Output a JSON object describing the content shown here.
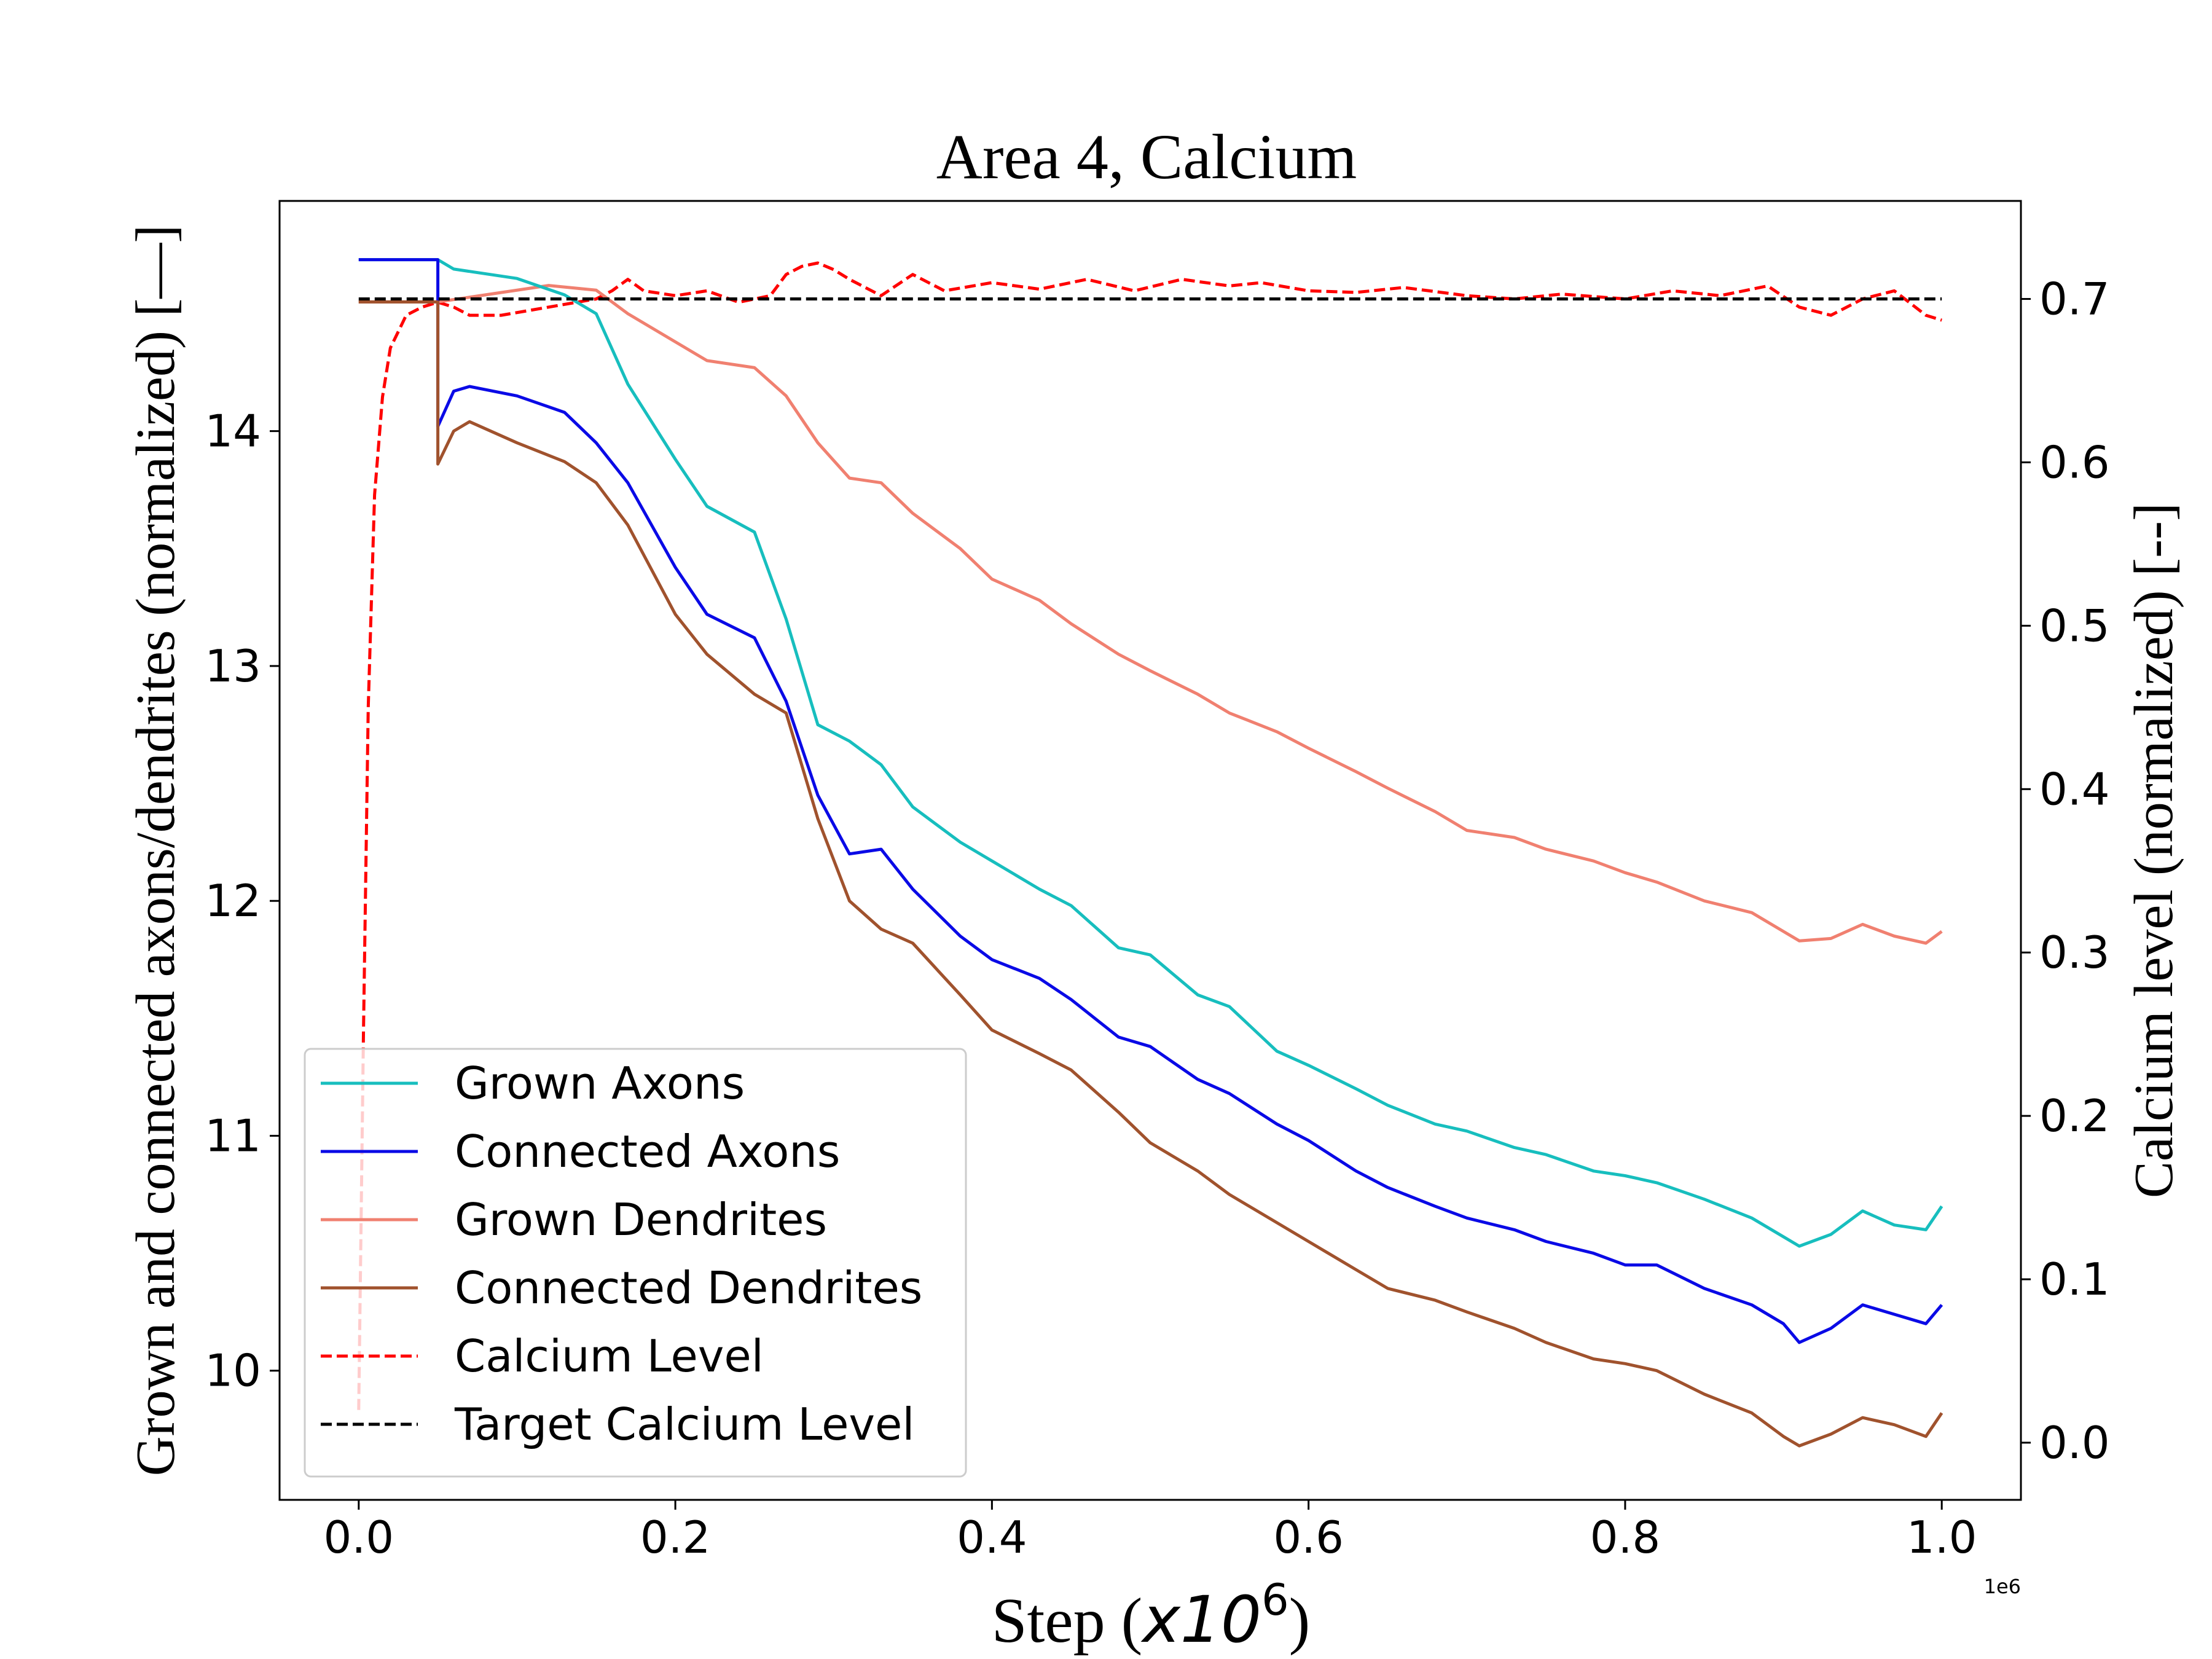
{
  "chart_data": {
    "type": "line",
    "title": "Area 4, Calcium",
    "xlabel": "Step (",
    "xlabel_math": "x10",
    "xlabel_sup": "6",
    "xlabel_close": ")",
    "x_offset_text": "1e6",
    "ylabel_left": "Grown and connected axons/dendrites (normalized) [—]",
    "ylabel_right": "Calcium level (normalized) [--]",
    "xlim": [
      -0.05,
      1.05
    ],
    "ylim_left": [
      9.45,
      14.98
    ],
    "ylim_right": [
      -0.035,
      0.76
    ],
    "x_ticks": [
      0.0,
      0.2,
      0.4,
      0.6,
      0.8,
      1.0
    ],
    "x_tick_labels": [
      "0.0",
      "0.2",
      "0.4",
      "0.6",
      "0.8",
      "1.0"
    ],
    "y_left_ticks": [
      10,
      11,
      12,
      13,
      14
    ],
    "y_left_tick_labels": [
      "10",
      "11",
      "12",
      "13",
      "14"
    ],
    "y_right_ticks": [
      0.0,
      0.1,
      0.2,
      0.3,
      0.4,
      0.5,
      0.6,
      0.7
    ],
    "y_right_tick_labels": [
      "0.0",
      "0.1",
      "0.2",
      "0.3",
      "0.4",
      "0.5",
      "0.6",
      "0.7"
    ],
    "grid": false,
    "legend_position": "lower-left",
    "series": [
      {
        "name": "Grown Axons",
        "color": "#17bebe",
        "style": "solid",
        "axis": "left",
        "x": [
          0.0,
          0.05,
          0.05,
          0.06,
          0.1,
          0.13,
          0.15,
          0.17,
          0.2,
          0.22,
          0.25,
          0.27,
          0.29,
          0.31,
          0.33,
          0.35,
          0.38,
          0.4,
          0.43,
          0.45,
          0.48,
          0.5,
          0.53,
          0.55,
          0.58,
          0.6,
          0.63,
          0.65,
          0.68,
          0.7,
          0.73,
          0.75,
          0.78,
          0.8,
          0.82,
          0.85,
          0.88,
          0.9,
          0.91,
          0.93,
          0.95,
          0.97,
          0.99,
          1.0
        ],
        "y": [
          14.73,
          14.73,
          14.73,
          14.69,
          14.65,
          14.58,
          14.5,
          14.2,
          13.88,
          13.68,
          13.57,
          13.2,
          12.75,
          12.68,
          12.58,
          12.4,
          12.25,
          12.17,
          12.05,
          11.98,
          11.8,
          11.77,
          11.6,
          11.55,
          11.36,
          11.3,
          11.2,
          11.13,
          11.05,
          11.02,
          10.95,
          10.92,
          10.85,
          10.83,
          10.8,
          10.73,
          10.65,
          10.57,
          10.53,
          10.58,
          10.68,
          10.62,
          10.6,
          10.7
        ]
      },
      {
        "name": "Connected Axons",
        "color": "#0a0ae6",
        "style": "solid",
        "axis": "left",
        "x": [
          0.0,
          0.05,
          0.05,
          0.06,
          0.07,
          0.1,
          0.13,
          0.15,
          0.17,
          0.2,
          0.22,
          0.25,
          0.27,
          0.29,
          0.31,
          0.33,
          0.35,
          0.38,
          0.4,
          0.43,
          0.45,
          0.48,
          0.5,
          0.53,
          0.55,
          0.58,
          0.6,
          0.63,
          0.65,
          0.68,
          0.7,
          0.73,
          0.75,
          0.78,
          0.8,
          0.82,
          0.85,
          0.88,
          0.9,
          0.91,
          0.93,
          0.95,
          0.97,
          0.99,
          1.0
        ],
        "y": [
          14.73,
          14.73,
          14.02,
          14.17,
          14.19,
          14.15,
          14.08,
          13.95,
          13.78,
          13.42,
          13.22,
          13.12,
          12.85,
          12.45,
          12.2,
          12.22,
          12.05,
          11.85,
          11.75,
          11.67,
          11.58,
          11.42,
          11.38,
          11.24,
          11.18,
          11.05,
          10.98,
          10.85,
          10.78,
          10.7,
          10.65,
          10.6,
          10.55,
          10.5,
          10.45,
          10.45,
          10.35,
          10.28,
          10.2,
          10.12,
          10.18,
          10.28,
          10.24,
          10.2,
          10.28
        ]
      },
      {
        "name": "Grown Dendrites",
        "color": "#f08070",
        "style": "solid",
        "axis": "left",
        "x": [
          0.0,
          0.05,
          0.08,
          0.12,
          0.15,
          0.17,
          0.2,
          0.22,
          0.25,
          0.27,
          0.29,
          0.31,
          0.33,
          0.35,
          0.38,
          0.4,
          0.43,
          0.45,
          0.48,
          0.5,
          0.53,
          0.55,
          0.58,
          0.6,
          0.63,
          0.65,
          0.68,
          0.7,
          0.73,
          0.75,
          0.78,
          0.8,
          0.82,
          0.85,
          0.88,
          0.9,
          0.91,
          0.93,
          0.95,
          0.97,
          0.99,
          1.0
        ],
        "y": [
          14.55,
          14.55,
          14.58,
          14.62,
          14.6,
          14.5,
          14.38,
          14.3,
          14.27,
          14.15,
          13.95,
          13.8,
          13.78,
          13.65,
          13.5,
          13.37,
          13.28,
          13.18,
          13.05,
          12.98,
          12.88,
          12.8,
          12.72,
          12.65,
          12.55,
          12.48,
          12.38,
          12.3,
          12.27,
          12.22,
          12.17,
          12.12,
          12.08,
          12.0,
          11.95,
          11.87,
          11.83,
          11.84,
          11.9,
          11.85,
          11.82,
          11.87
        ]
      },
      {
        "name": "Connected Dendrites",
        "color": "#a0522d",
        "style": "solid",
        "axis": "left",
        "x": [
          0.0,
          0.05,
          0.05,
          0.06,
          0.07,
          0.1,
          0.13,
          0.15,
          0.17,
          0.2,
          0.22,
          0.25,
          0.27,
          0.29,
          0.31,
          0.33,
          0.35,
          0.38,
          0.4,
          0.43,
          0.45,
          0.48,
          0.5,
          0.53,
          0.55,
          0.58,
          0.6,
          0.63,
          0.65,
          0.68,
          0.7,
          0.73,
          0.75,
          0.78,
          0.8,
          0.82,
          0.85,
          0.88,
          0.9,
          0.91,
          0.93,
          0.95,
          0.97,
          0.99,
          1.0
        ],
        "y": [
          14.55,
          14.55,
          13.86,
          14.0,
          14.04,
          13.95,
          13.87,
          13.78,
          13.6,
          13.22,
          13.05,
          12.88,
          12.8,
          12.35,
          12.0,
          11.88,
          11.82,
          11.6,
          11.45,
          11.35,
          11.28,
          11.1,
          10.97,
          10.85,
          10.75,
          10.63,
          10.55,
          10.43,
          10.35,
          10.3,
          10.25,
          10.18,
          10.12,
          10.05,
          10.03,
          10.0,
          9.9,
          9.82,
          9.72,
          9.68,
          9.73,
          9.8,
          9.77,
          9.72,
          9.82
        ]
      },
      {
        "name": "Calcium Level",
        "color": "#ff0000",
        "style": "dashed",
        "axis": "right",
        "x": [
          0.0,
          0.003,
          0.006,
          0.01,
          0.015,
          0.02,
          0.03,
          0.04,
          0.05,
          0.06,
          0.07,
          0.09,
          0.12,
          0.15,
          0.16,
          0.17,
          0.18,
          0.2,
          0.22,
          0.24,
          0.26,
          0.27,
          0.28,
          0.29,
          0.3,
          0.31,
          0.33,
          0.35,
          0.37,
          0.4,
          0.43,
          0.46,
          0.49,
          0.52,
          0.55,
          0.57,
          0.6,
          0.63,
          0.66,
          0.7,
          0.73,
          0.76,
          0.8,
          0.83,
          0.86,
          0.89,
          0.91,
          0.93,
          0.95,
          0.97,
          0.99,
          1.0
        ],
        "y": [
          0.02,
          0.25,
          0.45,
          0.58,
          0.64,
          0.67,
          0.69,
          0.695,
          0.698,
          0.695,
          0.69,
          0.69,
          0.695,
          0.7,
          0.705,
          0.712,
          0.705,
          0.702,
          0.705,
          0.698,
          0.702,
          0.715,
          0.72,
          0.722,
          0.718,
          0.712,
          0.702,
          0.715,
          0.705,
          0.71,
          0.706,
          0.712,
          0.705,
          0.712,
          0.708,
          0.71,
          0.705,
          0.704,
          0.707,
          0.702,
          0.7,
          0.703,
          0.7,
          0.705,
          0.702,
          0.708,
          0.695,
          0.69,
          0.7,
          0.705,
          0.69,
          0.687
        ]
      },
      {
        "name": "Target Calcium Level",
        "color": "#000000",
        "style": "dashed",
        "axis": "right",
        "x": [
          0.0,
          1.0
        ],
        "y": [
          0.7,
          0.7
        ]
      }
    ]
  }
}
